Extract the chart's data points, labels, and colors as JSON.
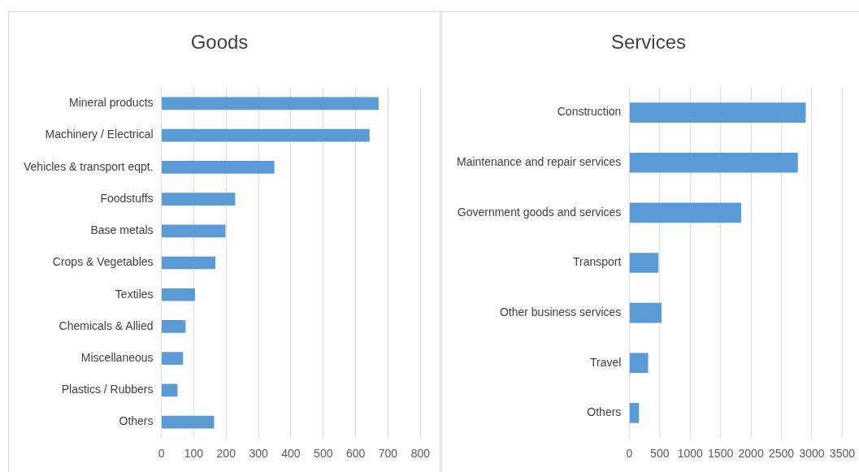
{
  "chart_data": [
    {
      "type": "bar",
      "orientation": "horizontal",
      "title": "Goods",
      "categories": [
        "Mineral products",
        "Machinery / Electrical",
        "Vehicles & transport eqpt.",
        "Foodstuffs",
        "Base metals",
        "Crops & Vegetables",
        "Textiles",
        "Chemicals & Allied",
        "Miscellaneous",
        "Plastics / Rubbers",
        "Others"
      ],
      "values": [
        671,
        643,
        349,
        228,
        198,
        167,
        104,
        75,
        67,
        50,
        163
      ],
      "color": "#5b9bd5",
      "xlim": [
        0,
        800
      ],
      "xticks": [
        0,
        100,
        200,
        300,
        400,
        500,
        600,
        700,
        800
      ],
      "grid": "x",
      "legend": false
    },
    {
      "type": "bar",
      "orientation": "horizontal",
      "title": "Services",
      "categories": [
        "Construction",
        "Maintenance and repair services",
        "Government goods and services",
        "Transport",
        "Other business services",
        "Travel",
        "Others"
      ],
      "values": [
        2900,
        2770,
        1840,
        480,
        530,
        310,
        160
      ],
      "color": "#5b9bd5",
      "xlim": [
        0,
        3500
      ],
      "xticks": [
        0,
        500,
        1000,
        1500,
        2000,
        2500,
        3000,
        3500
      ],
      "grid": "x",
      "legend": false
    }
  ]
}
